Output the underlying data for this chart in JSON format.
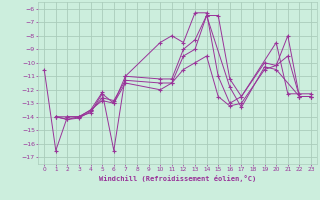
{
  "xlabel": "Windchill (Refroidissement éolien,°C)",
  "xlim": [
    -0.5,
    23.5
  ],
  "ylim": [
    -17.5,
    -5.5
  ],
  "yticks": [
    -17,
    -16,
    -15,
    -14,
    -13,
    -12,
    -11,
    -10,
    -9,
    -8,
    -7,
    -6
  ],
  "xticks": [
    0,
    1,
    2,
    3,
    4,
    5,
    6,
    7,
    8,
    9,
    10,
    11,
    12,
    13,
    14,
    15,
    16,
    17,
    18,
    19,
    20,
    21,
    22,
    23
  ],
  "background_color": "#cceedd",
  "grid_color": "#aaccbb",
  "line_color": "#993399",
  "series": [
    {
      "x": [
        0,
        1,
        2,
        3,
        4,
        5,
        6,
        7,
        10,
        11,
        12,
        13,
        14,
        15,
        16,
        17,
        20,
        21,
        22,
        23
      ],
      "y": [
        -10.5,
        -16.5,
        -14.0,
        -14.0,
        -13.5,
        -12.2,
        -16.5,
        -11.0,
        -8.5,
        -8.0,
        -8.5,
        -6.3,
        -6.3,
        -11.0,
        -13.0,
        -12.5,
        -8.5,
        -12.3,
        -12.3,
        -12.3
      ]
    },
    {
      "x": [
        1,
        2,
        3,
        4,
        5,
        6,
        7,
        10,
        11,
        12,
        13,
        14,
        15,
        16,
        17,
        19,
        20,
        21,
        22,
        23
      ],
      "y": [
        -14.0,
        -14.0,
        -14.0,
        -13.7,
        -12.3,
        -13.0,
        -11.0,
        -11.2,
        -11.2,
        -9.0,
        -8.3,
        -6.5,
        -6.5,
        -11.2,
        -12.5,
        -10.0,
        -10.2,
        -8.0,
        -12.5,
        -12.5
      ]
    },
    {
      "x": [
        1,
        2,
        3,
        4,
        5,
        6,
        7,
        10,
        11,
        12,
        13,
        14,
        15,
        16,
        17,
        19,
        20,
        21,
        22,
        23
      ],
      "y": [
        -14.0,
        -14.2,
        -14.0,
        -13.5,
        -12.8,
        -13.0,
        -11.5,
        -12.0,
        -11.5,
        -10.5,
        -10.0,
        -9.5,
        -12.5,
        -13.2,
        -13.0,
        -10.5,
        -10.2,
        -9.5,
        -12.5,
        -12.5
      ]
    },
    {
      "x": [
        1,
        2,
        3,
        4,
        5,
        6,
        7,
        10,
        11,
        12,
        13,
        14,
        16,
        17,
        19,
        20,
        22,
        23
      ],
      "y": [
        -14.0,
        -14.2,
        -14.1,
        -13.6,
        -12.6,
        -12.8,
        -11.3,
        -11.5,
        -11.5,
        -9.5,
        -9.0,
        -6.5,
        -11.8,
        -13.3,
        -10.3,
        -10.5,
        -12.5,
        -12.5
      ]
    }
  ]
}
